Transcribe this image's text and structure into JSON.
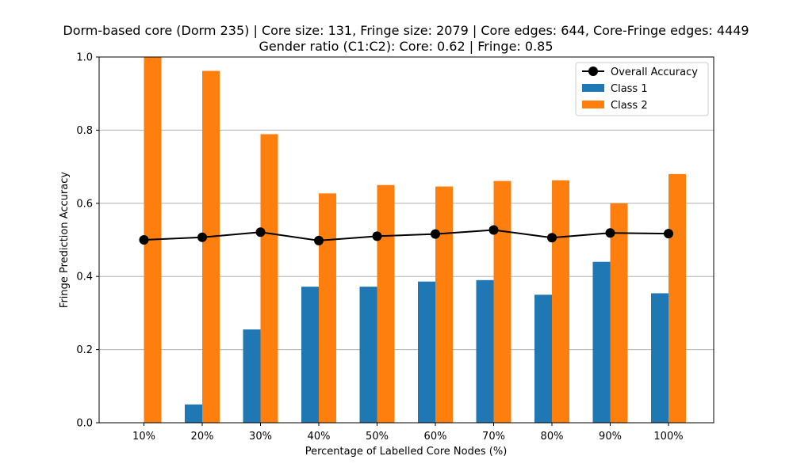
{
  "chart_data": {
    "type": "bar",
    "title_lines": [
      "Dorm-based core (Dorm 235) | Core size: 131, Fringe size: 2079 | Core edges: 644, Core-Fringe edges: 4449",
      "Gender ratio (C1:C2): Core: 0.62 | Fringe: 0.85"
    ],
    "xlabel": "Percentage of Labelled Core Nodes (%)",
    "ylabel": "Fringe Prediction Accuracy",
    "categories": [
      "10%",
      "20%",
      "30%",
      "40%",
      "50%",
      "60%",
      "70%",
      "80%",
      "90%",
      "100%"
    ],
    "ylim": [
      0,
      1.0
    ],
    "yticks": [
      0.0,
      0.2,
      0.4,
      0.6,
      0.8,
      1.0
    ],
    "ytick_labels": [
      "0.0",
      "0.2",
      "0.4",
      "0.6",
      "0.8",
      "1.0"
    ],
    "grid": "horizontal",
    "legend_position": "top-right",
    "series": [
      {
        "name": "Class 1",
        "kind": "bar",
        "color": "#1f77b4",
        "values": [
          0.0,
          0.05,
          0.255,
          0.372,
          0.372,
          0.386,
          0.39,
          0.35,
          0.44,
          0.354
        ]
      },
      {
        "name": "Class 2",
        "kind": "bar",
        "color": "#ff7f0e",
        "values": [
          1.0,
          0.962,
          0.789,
          0.627,
          0.65,
          0.646,
          0.661,
          0.663,
          0.6,
          0.68
        ]
      },
      {
        "name": "Overall Accuracy",
        "kind": "line",
        "color": "#000000",
        "marker": "circle",
        "values": [
          0.5,
          0.507,
          0.521,
          0.498,
          0.51,
          0.516,
          0.527,
          0.506,
          0.519,
          0.517
        ]
      }
    ]
  }
}
